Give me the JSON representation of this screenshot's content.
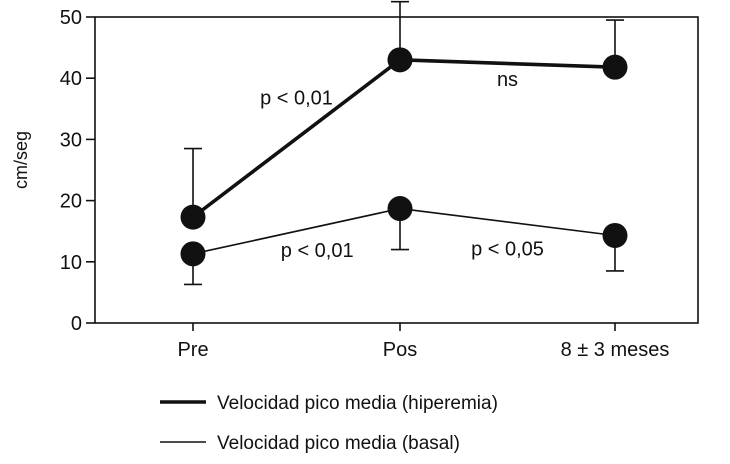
{
  "chart_data": {
    "type": "line",
    "categories": [
      "Pre",
      "Pos",
      "8 ± 3 meses"
    ],
    "ylabel": "cm/seg",
    "xlabel": "",
    "ylim": [
      0,
      50
    ],
    "yticks": [
      0,
      10,
      20,
      30,
      40,
      50
    ],
    "grid": false,
    "legend_position": "bottom",
    "series": [
      {
        "name": "Velocidad pico media (hiperemia)",
        "values": [
          17.3,
          43.0,
          41.8
        ],
        "error_upper": [
          28.5,
          52.5,
          49.5
        ],
        "error_lower": [
          null,
          null,
          null
        ],
        "line": "thick"
      },
      {
        "name": "Velocidad pico media (basal)",
        "values": [
          11.3,
          18.7,
          14.3
        ],
        "error_upper": [
          null,
          null,
          null
        ],
        "error_lower": [
          6.3,
          12.0,
          8.5
        ],
        "line": "thin"
      }
    ],
    "annotations": [
      {
        "id": "p-hyper-pre-pos",
        "text": "p < 0,01",
        "x": 0.5,
        "y": 35.7
      },
      {
        "id": "ns-hyper-pos-8m",
        "text": "ns",
        "x": 1.5,
        "y": 38.7
      },
      {
        "id": "p-basal-pre-pos",
        "text": "p < 0,01",
        "x": 0.6,
        "y": 10.8
      },
      {
        "id": "p-basal-pos-8m",
        "text": "p < 0,05",
        "x": 1.5,
        "y": 11.0
      }
    ],
    "colors": {
      "series": "#111111",
      "axis": "#111111"
    }
  }
}
